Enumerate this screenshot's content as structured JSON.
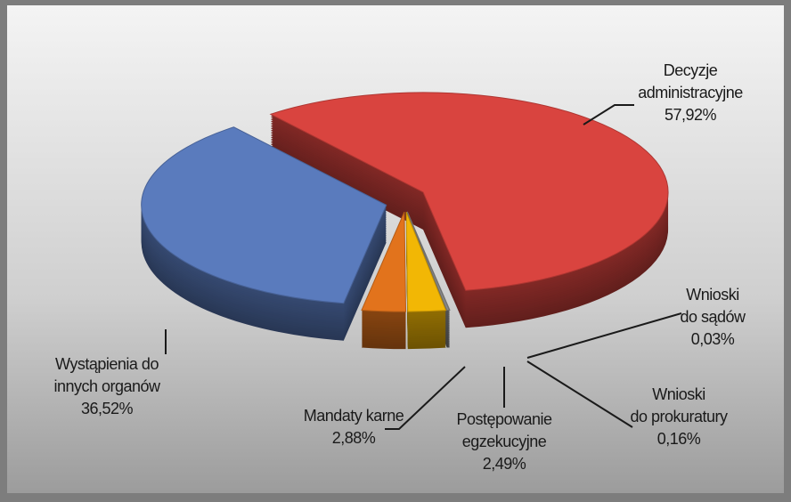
{
  "chart_data": {
    "type": "pie",
    "categories": [
      [
        "Decyzje",
        "administracyjne"
      ],
      [
        "Wnioski",
        "do sądów"
      ],
      [
        "Wnioski",
        "do prokuratury"
      ],
      [
        "Postępowanie",
        "egzekucyjne"
      ],
      [
        "Mandaty karne"
      ],
      [
        "Wystąpienia do",
        "innych organów"
      ]
    ],
    "values": [
      57.92,
      0.03,
      0.16,
      2.49,
      2.88,
      36.52
    ],
    "value_labels": [
      "57,92%",
      "0,03%",
      "0,16%",
      "2,49%",
      "2,88%",
      "36,52%"
    ],
    "colors": [
      "#d9443f",
      "#9a9a9a",
      "#8a8a8a",
      "#f2b705",
      "#e2731c",
      "#5a7bbd"
    ]
  }
}
